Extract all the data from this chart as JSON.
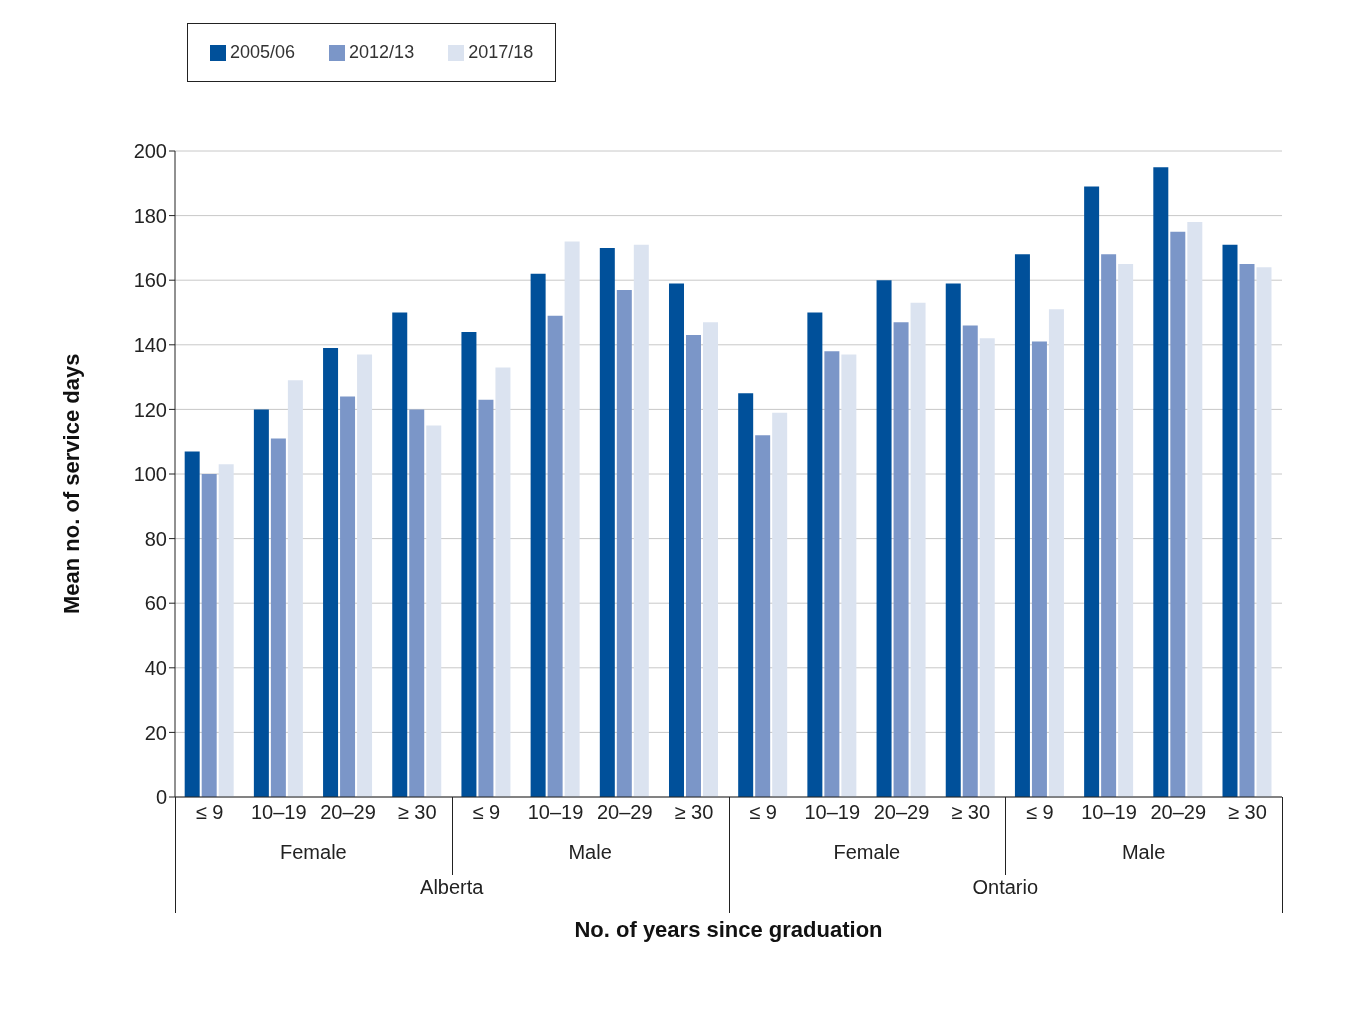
{
  "chart_data": {
    "type": "bar",
    "xlabel": "No. of years since graduation",
    "ylabel": "Mean no. of service days",
    "categories": [
      "≤ 9",
      "10–19",
      "20–29",
      "≥ 30",
      "≤ 9",
      "10–19",
      "20–29",
      "≥ 30",
      "≤ 9",
      "10–19",
      "20–29",
      "≥ 30",
      "≤ 9",
      "10–19",
      "20–29",
      "≥ 30"
    ],
    "annotations": [
      "Female",
      "Male",
      "Female",
      "Male",
      "Alberta",
      "Ontario"
    ],
    "series": [
      {
        "name": "2005/06",
        "color": "#00509a",
        "values": [
          107,
          120,
          139,
          150,
          144,
          162,
          170,
          159,
          125,
          150,
          160,
          159,
          168,
          189,
          195,
          171
        ]
      },
      {
        "name": "2012/13",
        "color": "#7b96c8",
        "values": [
          100,
          111,
          124,
          120,
          123,
          149,
          157,
          143,
          112,
          138,
          147,
          146,
          141,
          168,
          175,
          165
        ]
      },
      {
        "name": "2017/18",
        "color": "#dbe3f0",
        "values": [
          103,
          129,
          137,
          115,
          133,
          172,
          171,
          147,
          119,
          137,
          153,
          142,
          151,
          165,
          178,
          164
        ]
      }
    ],
    "ylim": [
      0,
      200
    ],
    "yticks": [
      0,
      20,
      40,
      60,
      80,
      100,
      120,
      140,
      160,
      180,
      200
    ],
    "grid": "y",
    "legend": "top left"
  }
}
